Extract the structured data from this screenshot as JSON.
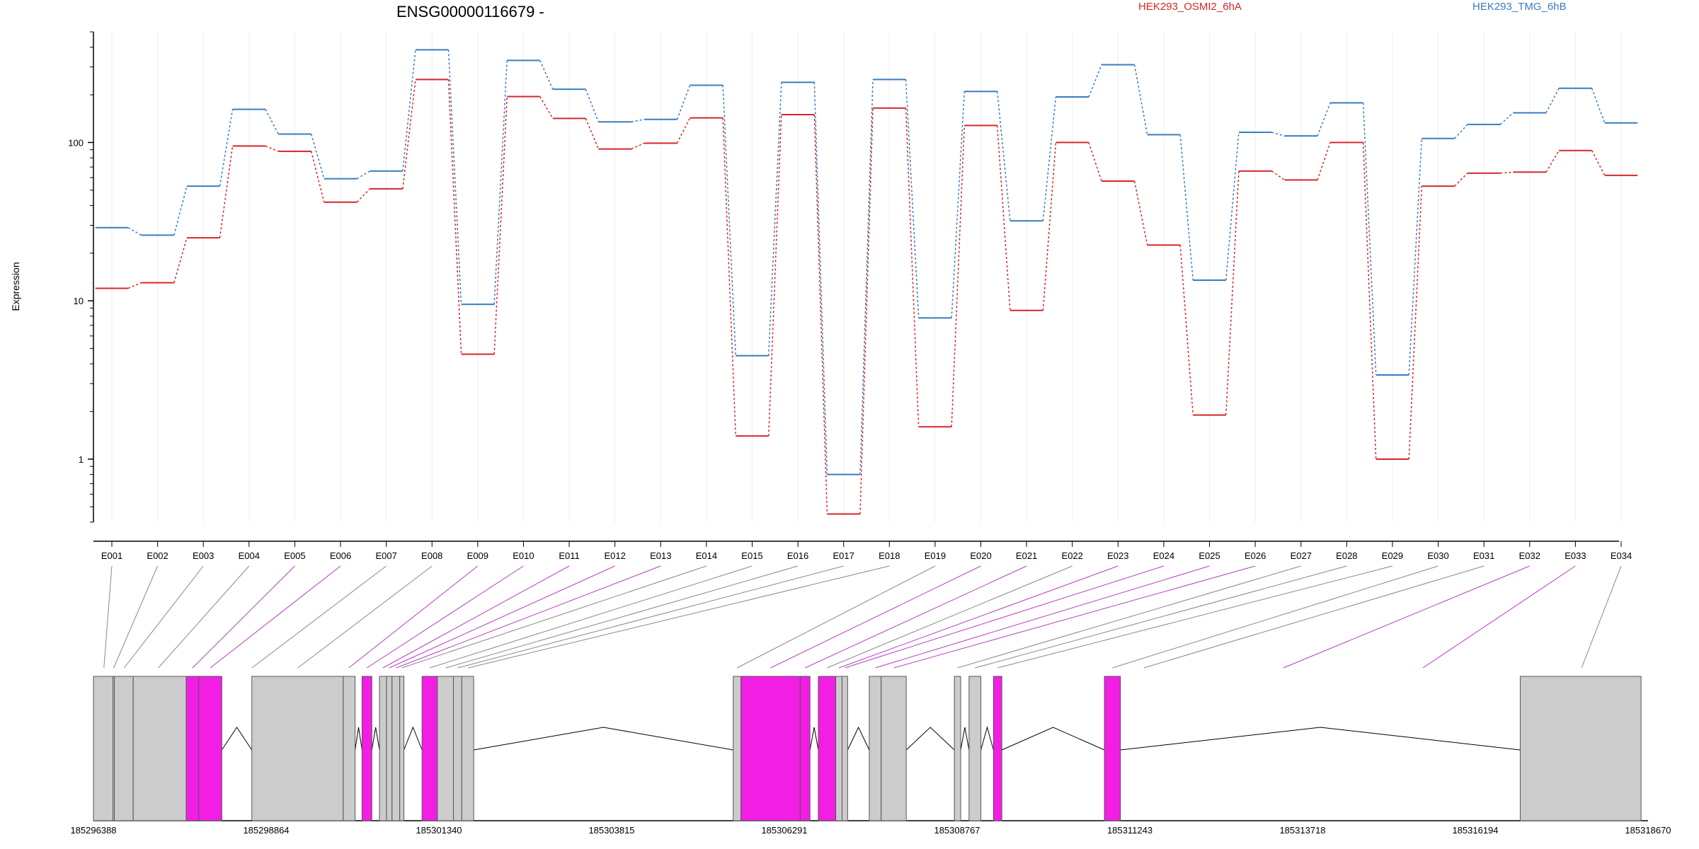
{
  "chart_data": {
    "type": "line",
    "title": "ENSG00000116679 -",
    "ylabel": "Expression",
    "yscale": "log",
    "ylim": [
      0.4,
      500
    ],
    "y_ticks": [
      1,
      10,
      100
    ],
    "y_tick_labels": [
      "1",
      "10",
      "100"
    ],
    "categories": [
      "E001",
      "E002",
      "E003",
      "E004",
      "E005",
      "E006",
      "E007",
      "E008",
      "E009",
      "E010",
      "E011",
      "E012",
      "E013",
      "E014",
      "E015",
      "E016",
      "E017",
      "E018",
      "E019",
      "E020",
      "E021",
      "E022",
      "E023",
      "E024",
      "E025",
      "E026",
      "E027",
      "E028",
      "E029",
      "E030",
      "E031",
      "E032",
      "E033",
      "E034"
    ],
    "series": [
      {
        "name": "HEK293_OSMI2_6hA",
        "color": "#d62728",
        "values": [
          12,
          13,
          25,
          95,
          88,
          42,
          51,
          250,
          4.6,
          195,
          142,
          91,
          99,
          143,
          1.4,
          150,
          0.45,
          165,
          1.6,
          128,
          8.7,
          100,
          57,
          22.5,
          1.9,
          66,
          58,
          100,
          1.0,
          53,
          64,
          65,
          89,
          62
        ]
      },
      {
        "name": "HEK293_TMG_6hB",
        "color": "#3a7cc0",
        "values": [
          29,
          26,
          53,
          162,
          113,
          59,
          66,
          385,
          9.5,
          330,
          217,
          135,
          140,
          230,
          4.5,
          240,
          0.8,
          250,
          7.8,
          210,
          32,
          194,
          310,
          112,
          13.5,
          116,
          110,
          178,
          3.4,
          106,
          130,
          154,
          220,
          133
        ]
      }
    ],
    "bin_types": [
      "exon",
      "exon",
      "exon",
      "exon",
      "exon",
      "exon",
      "exon",
      "exon",
      "exon",
      "exon",
      "exon",
      "exon",
      "exon",
      "exon",
      "exon",
      "exon",
      "exon",
      "exon",
      "exon",
      "exon",
      "exon",
      "exon",
      "exon",
      "exon",
      "exon",
      "exon",
      "exon",
      "exon",
      "exon",
      "exon",
      "exon",
      "exon",
      "exon",
      "exon"
    ],
    "gene_model": {
      "start": 185296388,
      "end": 185318670,
      "axis_labels": [
        "185296388",
        "185298864",
        "185301340",
        "185303815",
        "185306291",
        "185308767",
        "185311243",
        "185313718",
        "185316194",
        "185318670"
      ],
      "mapping_highlight": [
        false,
        false,
        false,
        false,
        true,
        true,
        false,
        false,
        true,
        true,
        true,
        true,
        true,
        false,
        false,
        false,
        false,
        false,
        false,
        true,
        true,
        false,
        true,
        true,
        true,
        true,
        false,
        false,
        false,
        false,
        false,
        true,
        true,
        false
      ],
      "blocks": [
        {
          "s": 185296388,
          "e": 185296668,
          "c": "#cccccc"
        },
        {
          "s": 185296668,
          "e": 185296688,
          "c": "#cccccc"
        },
        {
          "s": 185296688,
          "e": 185296958,
          "c": "#cccccc"
        },
        {
          "s": 185296958,
          "e": 185297718,
          "c": "#cccccc"
        },
        {
          "s": 185297718,
          "e": 185297898,
          "c": "#f21ee4"
        },
        {
          "s": 185297898,
          "e": 185298228,
          "c": "#f21ee4"
        },
        {
          "s": 185298658,
          "e": 185299968,
          "c": "#cccccc"
        },
        {
          "s": 185299968,
          "e": 185300138,
          "c": "#cccccc"
        },
        {
          "s": 185300238,
          "e": 185300378,
          "c": "#f21ee4"
        },
        {
          "s": 185300488,
          "e": 185300588,
          "c": "#cccccc"
        },
        {
          "s": 185300588,
          "e": 185300668,
          "c": "#cccccc"
        },
        {
          "s": 185300668,
          "e": 185300778,
          "c": "#cccccc"
        },
        {
          "s": 185300778,
          "e": 185300838,
          "c": "#cccccc"
        },
        {
          "s": 185301098,
          "e": 185301318,
          "c": "#f21ee4"
        },
        {
          "s": 185301318,
          "e": 185301548,
          "c": "#cccccc"
        },
        {
          "s": 185301548,
          "e": 185301668,
          "c": "#cccccc"
        },
        {
          "s": 185301668,
          "e": 185301838,
          "c": "#cccccc"
        },
        {
          "s": 185305558,
          "e": 185305668,
          "c": "#cccccc"
        },
        {
          "s": 185305668,
          "e": 185306518,
          "c": "#f21ee4"
        },
        {
          "s": 185306518,
          "e": 185306658,
          "c": "#f21ee4"
        },
        {
          "s": 185306778,
          "e": 185307028,
          "c": "#f21ee4"
        },
        {
          "s": 185307028,
          "e": 185307118,
          "c": "#cccccc"
        },
        {
          "s": 185307118,
          "e": 185307198,
          "c": "#cccccc"
        },
        {
          "s": 185307508,
          "e": 185307678,
          "c": "#cccccc"
        },
        {
          "s": 185307678,
          "e": 185308038,
          "c": "#cccccc"
        },
        {
          "s": 185308728,
          "e": 185308818,
          "c": "#cccccc"
        },
        {
          "s": 185308938,
          "e": 185309108,
          "c": "#cccccc"
        },
        {
          "s": 185309288,
          "e": 185309408,
          "c": "#f21ee4"
        },
        {
          "s": 185310878,
          "e": 185311108,
          "c": "#f21ee4"
        },
        {
          "s": 185316838,
          "e": 185318570,
          "c": "#cccccc"
        }
      ],
      "introns": [
        [
          185298228,
          185298658
        ],
        [
          185300138,
          185300238
        ],
        [
          185300378,
          185300488
        ],
        [
          185300838,
          185301098
        ],
        [
          185301838,
          185305558
        ],
        [
          185306658,
          185306778
        ],
        [
          185307198,
          185307508
        ],
        [
          185308038,
          185308728
        ],
        [
          185308818,
          185308938
        ],
        [
          185309108,
          185309288
        ],
        [
          185309408,
          185310878
        ],
        [
          185311108,
          185316838
        ]
      ],
      "bin_targets": [
        185296538,
        185296678,
        185296828,
        185297318,
        185297808,
        185298063,
        185298658,
        185299318,
        185300048,
        185300308,
        185300538,
        185300628,
        185300728,
        185300808,
        185301208,
        185301438,
        185301608,
        185301758,
        185305613,
        185306093,
        185306588,
        185306903,
        185307073,
        185307158,
        185307593,
        185307858,
        185308773,
        185309023,
        185309348,
        185310993,
        185311443,
        185313443,
        185315443,
        185317718
      ]
    }
  }
}
